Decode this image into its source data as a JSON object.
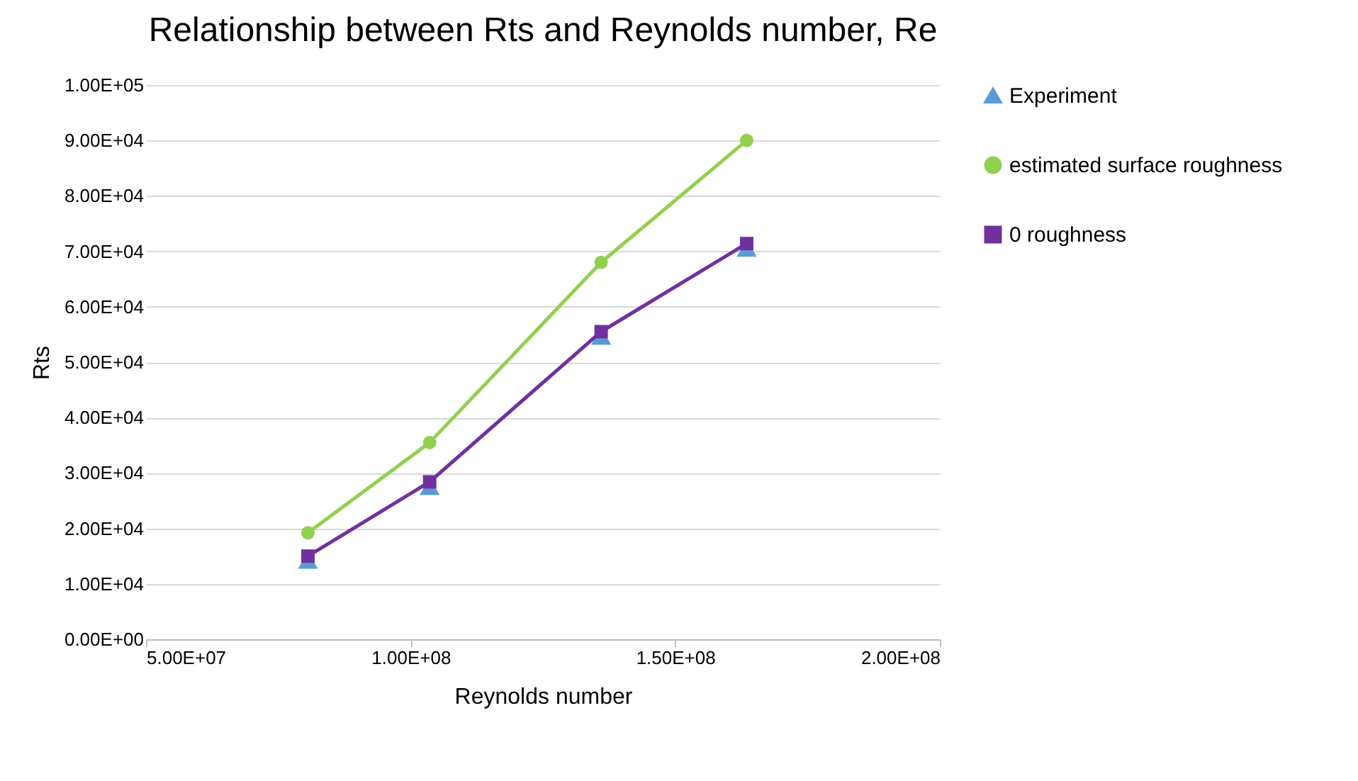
{
  "chart_data": {
    "type": "scatter",
    "title": "Relationship between Rts and Reynolds number, Re",
    "xlabel": "Reynolds number",
    "ylabel": "Rts",
    "xlim": [
      50000000,
      200000000
    ],
    "xticks": [
      {
        "value": 50000000,
        "label": "5.00E+07"
      },
      {
        "value": 100000000,
        "label": "1.00E+08"
      },
      {
        "value": 150000000,
        "label": "1.50E+08"
      },
      {
        "value": 200000000,
        "label": "2.00E+08"
      }
    ],
    "ylim": [
      0,
      100000
    ],
    "yticks": [
      {
        "value": 0,
        "label": "0.00E+00"
      },
      {
        "value": 10000,
        "label": "1.00E+04"
      },
      {
        "value": 20000,
        "label": "2.00E+04"
      },
      {
        "value": 30000,
        "label": "3.00E+04"
      },
      {
        "value": 40000,
        "label": "4.00E+04"
      },
      {
        "value": 50000,
        "label": "5.00E+04"
      },
      {
        "value": 60000,
        "label": "6.00E+04"
      },
      {
        "value": 70000,
        "label": "7.00E+04"
      },
      {
        "value": 80000,
        "label": "8.00E+04"
      },
      {
        "value": 90000,
        "label": "9.00E+04"
      },
      {
        "value": 100000,
        "label": "1.00E+05"
      }
    ],
    "x": [
      80600000,
      103600000,
      136000000,
      163500000
    ],
    "grid": "y",
    "legend": "right",
    "series": [
      {
        "name": "Experiment",
        "marker": "triangle",
        "color": "#5b9bd5",
        "values": [
          14300,
          27600,
          54700,
          70600
        ]
      },
      {
        "name": "estimated surface roughness",
        "type": "line",
        "marker": "circle",
        "color": "#92d050",
        "values": [
          19200,
          35500,
          68000,
          90000
        ]
      },
      {
        "name": "0 roughness",
        "type": "line",
        "marker": "square",
        "color": "#7030a0",
        "values": [
          15000,
          28400,
          55500,
          71400
        ]
      }
    ]
  }
}
